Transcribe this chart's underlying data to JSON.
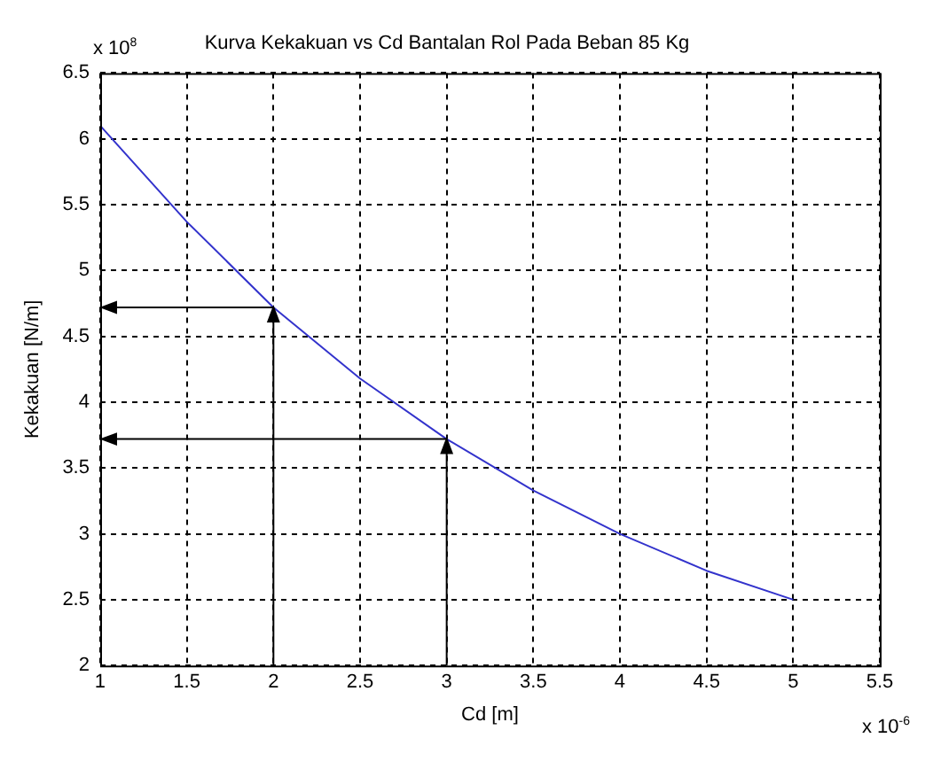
{
  "chart_data": {
    "type": "line",
    "title": "Kurva Kekakuan vs Cd Bantalan Rol Pada Beban 85 Kg",
    "xlabel": "Cd [m]",
    "ylabel": "Kekakuan [N/m]",
    "annotations": [
      "x 10$^{8}$",
      "x 10$^{-6}$"
    ],
    "x": [
      1,
      1.5,
      2,
      2.5,
      3,
      3.5,
      4,
      4.5,
      5
    ],
    "series": [
      {
        "color": "#3333cc",
        "values": [
          6.1,
          5.37,
          4.72,
          4.18,
          3.72,
          3.33,
          3.0,
          2.72,
          2.5
        ]
      }
    ],
    "xlim": [
      1,
      5.5
    ],
    "xticks": [
      1,
      1.5,
      2,
      2.5,
      3,
      3.5,
      4,
      4.5,
      5,
      5.5
    ],
    "ylim": [
      2,
      6.5
    ],
    "yticks": [
      2,
      2.5,
      3,
      3.5,
      4,
      4.5,
      5,
      5.5,
      6,
      6.5
    ],
    "grid": true,
    "legend": false,
    "marker": "none",
    "line_style": "solid"
  }
}
